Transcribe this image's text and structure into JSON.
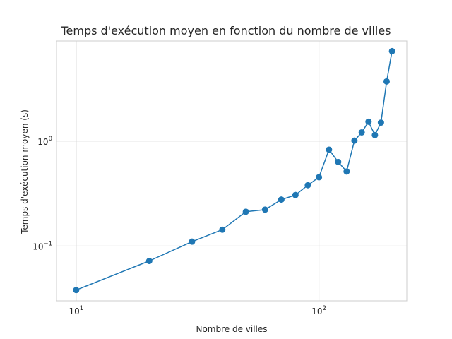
{
  "chart_data": {
    "type": "line",
    "title": "Temps d'exécution moyen en fonction du nombre de villes",
    "xlabel": "Nombre de villes",
    "ylabel": "Temps d'exécution moyen (s)",
    "xscale": "log",
    "yscale": "log",
    "xlim": [
      8.3,
      230
    ],
    "ylim": [
      0.03,
      9
    ],
    "grid": true,
    "x_ticks": [
      {
        "value": 10,
        "base": "10",
        "exp": "1"
      },
      {
        "value": 100,
        "base": "10",
        "exp": "2"
      }
    ],
    "y_ticks": [
      {
        "value": 0.1,
        "base": "10",
        "exp": "−1"
      },
      {
        "value": 1,
        "base": "10",
        "exp": "0"
      }
    ],
    "series": [
      {
        "color": "#1f77b4",
        "marker": "circle",
        "x": [
          10,
          20,
          30,
          40,
          50,
          60,
          70,
          80,
          90,
          100,
          110,
          120,
          130,
          140,
          150,
          160,
          170,
          180,
          190,
          200
        ],
        "y": [
          0.038,
          0.072,
          0.11,
          0.143,
          0.212,
          0.222,
          0.277,
          0.306,
          0.38,
          0.452,
          0.828,
          0.632,
          0.513,
          1.01,
          1.21,
          1.53,
          1.14,
          1.5,
          3.7,
          7.2
        ]
      }
    ]
  }
}
